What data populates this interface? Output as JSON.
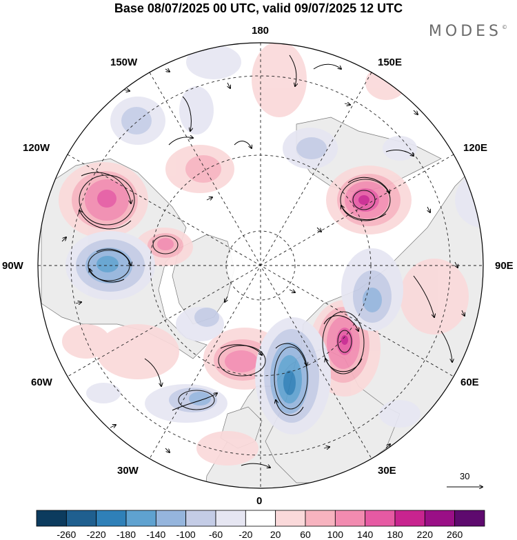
{
  "title": "Base 08/07/2025 00 UTC, valid 09/07/2025 12 UTC",
  "brand": "MODES",
  "brand_mark": "©",
  "longitude_labels": {
    "n180": "180",
    "e150": "150E",
    "e120": "120E",
    "e90": "90E",
    "e60": "60E",
    "e30": "30E",
    "s0": "0",
    "w30": "30W",
    "w60": "60W",
    "w90": "90W",
    "w120": "120W",
    "w150": "150W"
  },
  "reference_vector": "30",
  "colorbar": {
    "colors": [
      "#0c3b5e",
      "#1f5f8f",
      "#2f80b8",
      "#5fa2d0",
      "#95b5dd",
      "#c4cce6",
      "#e6e6f2",
      "#ffffff",
      "#fad9da",
      "#f7b3bf",
      "#f28bb0",
      "#e65aa3",
      "#c8248f",
      "#9a0f86",
      "#5e0a6e"
    ],
    "ticks": [
      "-260",
      "-220",
      "-180",
      "-140",
      "-100",
      "-60",
      "-20",
      "20",
      "60",
      "100",
      "140",
      "180",
      "220",
      "260"
    ]
  }
}
